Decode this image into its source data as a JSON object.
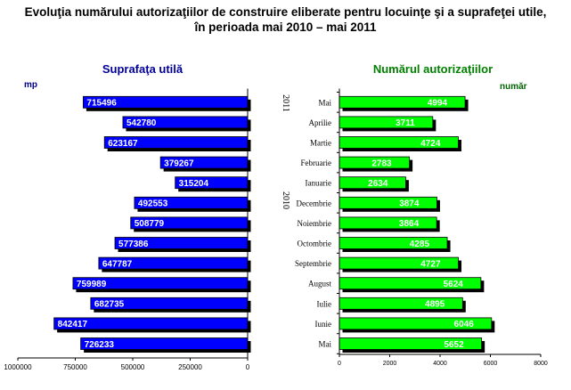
{
  "title": {
    "line1": "Evoluţia numărului autorizaţiilor de construire eliberate pentru locuinţe şi a suprafeţei utile,",
    "line2": "în perioada mai 2010 – mai 2011"
  },
  "chart_data": [
    {
      "type": "bar",
      "orientation": "horizontal",
      "direction": "right-to-left",
      "title": "Suprafaţa utilă",
      "unit_label": "mp",
      "categories": [
        "Mai 2011",
        "Aprilie 2011",
        "Martie 2011",
        "Februarie 2011",
        "Ianuarie 2011",
        "Decembrie 2010",
        "Noiembrie 2010",
        "Octombrie 2010",
        "Septembrie 2010",
        "August 2010",
        "Iulie 2010",
        "Iunie 2010",
        "Mai 2010"
      ],
      "values": [
        715496,
        542780,
        623167,
        379267,
        315204,
        492553,
        508779,
        577386,
        647787,
        759989,
        682735,
        842417,
        726233
      ],
      "value_labels": [
        "715496",
        "542780",
        "623167",
        "379267",
        "315204",
        "492553",
        "508779",
        "577386",
        "647787",
        "759989",
        "682735",
        "842417",
        "726233"
      ],
      "xlim": [
        0,
        1000000
      ],
      "ticks": [
        1000000,
        750000,
        500000,
        250000,
        0
      ],
      "tick_labels": [
        "1000000",
        "750000",
        "500000",
        "250000",
        "0"
      ],
      "color": "#0000ff"
    },
    {
      "type": "bar",
      "orientation": "horizontal",
      "title": "Numărul autorizaţiilor",
      "unit_label": "număr",
      "categories": [
        "Mai",
        "Aprilie",
        "Martie",
        "Februarie",
        "Ianuarie",
        "Decembrie",
        "Noiembrie",
        "Octombrie",
        "Septembrie",
        "August",
        "Iulie",
        "Iunie",
        "Mai"
      ],
      "values": [
        4994,
        3711,
        4724,
        2783,
        2634,
        3874,
        3864,
        4285,
        4727,
        5624,
        4895,
        6046,
        5652
      ],
      "value_labels": [
        "4994",
        "3711",
        "4724",
        "2783",
        "2634",
        "3874",
        "3864",
        "4285",
        "4727",
        "5624",
        "4895",
        "6046",
        "5652"
      ],
      "xlim": [
        0,
        8000
      ],
      "ticks": [
        0,
        2000,
        4000,
        6000,
        8000
      ],
      "tick_labels": [
        "0",
        "2000",
        "4000",
        "6000",
        "8000"
      ],
      "year_labels": [
        "2011",
        "2010"
      ],
      "color": "#00ff00"
    }
  ]
}
